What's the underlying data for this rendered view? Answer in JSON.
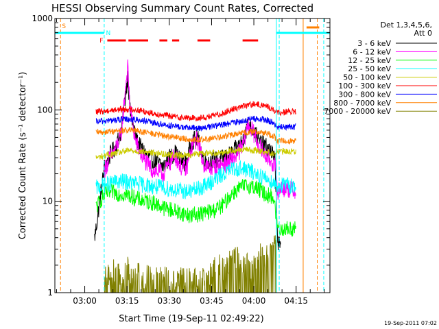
{
  "chart_data": {
    "type": "line",
    "title": "HESSI Observing Summary Count Rates, Corrected",
    "xlabel": "Start Time (19-Sep-11 02:49:22)",
    "ylabel": "Corrected Count Rate (s⁻¹ detector⁻¹)",
    "yscale": "log",
    "ylim": [
      1,
      1000
    ],
    "x_unit": "minutes of day (UT)",
    "xlim": [
      169.4,
      267
    ],
    "x_tick_labels": [
      "03:00",
      "03:15",
      "03:30",
      "03:45",
      "04:00",
      "04:15"
    ],
    "x_tick_values": [
      180,
      195,
      210,
      225,
      240,
      255
    ],
    "y_tick_labels": [
      "1",
      "10",
      "100",
      "1000"
    ],
    "y_tick_values": [
      1,
      10,
      100,
      1000
    ],
    "legend": {
      "placement": "right",
      "header": [
        "Det 1,3,4,5,6,",
        "Att 0"
      ]
    },
    "series": [
      {
        "name": "3 - 6 keV",
        "color": "#000000",
        "x": [
          183.5,
          184.0,
          187.0,
          189.0,
          191.0,
          193.0,
          194.6,
          195.3,
          196.0,
          198.0,
          200.0,
          202.0,
          204.0,
          206.0,
          208.0,
          210.0,
          212.0,
          214.0,
          216.0,
          218.0,
          220.0,
          222.0,
          224.0,
          226.0,
          228.0,
          230.0,
          232.0,
          234.0,
          236.0,
          238.0,
          240.0,
          242.0,
          244.0,
          246.0,
          247.5,
          248.5,
          249.5
        ],
        "y": [
          4.0,
          5.0,
          24,
          32,
          40,
          60,
          160,
          240,
          100,
          50,
          38,
          32,
          28,
          26,
          24,
          30,
          34,
          28,
          26,
          45,
          50,
          30,
          27,
          28,
          29,
          30,
          33,
          38,
          46,
          70,
          60,
          45,
          40,
          36,
          28,
          3.6,
          3.0
        ]
      },
      {
        "name": "6 - 12 keV",
        "color": "#ff00ff",
        "x": [
          187.0,
          189.0,
          191.0,
          193.0,
          194.6,
          195.3,
          196.0,
          198.0,
          200.0,
          202.0,
          204.0,
          206.0,
          208.0,
          210.0,
          212.0,
          214.0,
          216.0,
          218.0,
          220.0,
          222.0,
          224.0,
          226.0,
          228.0,
          230.0,
          232.0,
          234.0,
          236.0,
          238.0,
          240.0,
          242.0,
          244.0,
          246.0,
          247.5,
          248.5,
          250.0,
          255.0
        ],
        "y": [
          22,
          30,
          38,
          55,
          200,
          290,
          110,
          45,
          32,
          26,
          22,
          21,
          20,
          26,
          32,
          24,
          22,
          40,
          48,
          26,
          23,
          24,
          25,
          26,
          28,
          32,
          40,
          70,
          55,
          40,
          32,
          28,
          24,
          13,
          14,
          13
        ]
      },
      {
        "name": "12 - 25 keV",
        "color": "#00ff00",
        "x": [
          184.0,
          187.0,
          190.0,
          193.0,
          196.0,
          199.0,
          202.0,
          205.0,
          208.0,
          211.0,
          214.0,
          217.0,
          220.0,
          223.0,
          226.0,
          229.0,
          232.0,
          235.0,
          238.0,
          241.0,
          244.0,
          247.0,
          248.5,
          250.0,
          255.0
        ],
        "y": [
          8.5,
          12,
          12.5,
          12,
          11.5,
          10.5,
          10,
          9.5,
          8.5,
          8.0,
          7.5,
          7.0,
          7.2,
          7.5,
          8,
          9,
          12,
          14,
          15,
          14,
          12,
          11,
          5.0,
          5.0,
          5.0
        ]
      },
      {
        "name": "25 - 50 keV",
        "color": "#00ffff",
        "x": [
          184.0,
          187.0,
          190.0,
          193.0,
          196.0,
          199.0,
          202.0,
          205.0,
          208.0,
          211.0,
          214.0,
          217.0,
          220.0,
          223.0,
          226.0,
          229.0,
          232.0,
          235.0,
          238.0,
          241.0,
          244.0,
          247.0,
          248.5,
          250.0,
          255.0
        ],
        "y": [
          14,
          15,
          16,
          16.5,
          16,
          15.5,
          15,
          14.5,
          14,
          13.5,
          13,
          12.8,
          13.5,
          15,
          17,
          20,
          22,
          23,
          22,
          20,
          18,
          16,
          15,
          15,
          15
        ]
      },
      {
        "name": "50 - 100 keV",
        "color": "#cccc00",
        "x": [
          184.0,
          188.0,
          192.0,
          196.0,
          200.0,
          204.0,
          208.0,
          212.0,
          216.0,
          220.0,
          224.0,
          228.0,
          232.0,
          236.0,
          240.0,
          244.0,
          247.0,
          248.5,
          250.0,
          255.0
        ],
        "y": [
          30,
          32,
          34,
          36,
          35,
          34,
          33,
          32,
          32,
          33,
          34,
          34,
          36,
          37,
          36,
          35,
          33,
          35,
          35,
          35
        ]
      },
      {
        "name": "100 - 300 keV",
        "color": "#ff0000",
        "x": [
          184.0,
          188.0,
          192.0,
          196.0,
          200.0,
          204.0,
          208.0,
          212.0,
          216.0,
          220.0,
          224.0,
          228.0,
          232.0,
          236.0,
          240.0,
          244.0,
          247.0,
          248.5,
          250.0,
          255.0
        ],
        "y": [
          95,
          98,
          101,
          102,
          98,
          92,
          88,
          84,
          82,
          81,
          84,
          90,
          100,
          110,
          115,
          112,
          100,
          92,
          95,
          95
        ]
      },
      {
        "name": "300 - 800 keV",
        "color": "#0000ff",
        "x": [
          184.0,
          188.0,
          192.0,
          196.0,
          200.0,
          204.0,
          208.0,
          212.0,
          216.0,
          220.0,
          224.0,
          228.0,
          232.0,
          236.0,
          240.0,
          244.0,
          247.0,
          248.5,
          250.0,
          255.0
        ],
        "y": [
          74,
          76,
          78,
          79,
          77,
          72,
          69,
          66,
          64,
          63,
          65,
          68,
          72,
          76,
          80,
          78,
          72,
          64,
          65,
          65
        ]
      },
      {
        "name": "800 - 7000 keV",
        "color": "#ff8000",
        "x": [
          184.0,
          188.0,
          192.0,
          196.0,
          200.0,
          204.0,
          208.0,
          212.0,
          216.0,
          220.0,
          224.0,
          228.0,
          232.0,
          236.0,
          240.0,
          244.0,
          247.0,
          248.5,
          250.0,
          255.0
        ],
        "y": [
          56,
          58,
          59,
          60,
          58,
          55,
          52,
          50,
          48,
          47,
          48,
          50,
          53,
          56,
          58,
          56,
          52,
          45,
          46,
          46
        ]
      },
      {
        "name": "7000 - 20000 keV",
        "color": "#808000",
        "x": [
          187.0,
          189.0,
          191.0,
          193.0,
          195.0,
          197.0,
          199.0,
          201.0,
          203.0,
          205.0,
          224.0,
          227.0,
          230.0,
          233.0,
          236.0,
          239.0,
          242.0,
          245.0,
          248.0
        ],
        "y": [
          2.0,
          1.5,
          2.0,
          1.4,
          2.0,
          1.6,
          1.8,
          1.3,
          2.0,
          1.5,
          1.5,
          2.2,
          1.8,
          2.8,
          2.2,
          2.0,
          3.0,
          2.5,
          4.0
        ]
      }
    ],
    "night_markers": [
      {
        "label": "S",
        "x": 171.4
      },
      {
        "label": "N",
        "x": 186.9
      },
      {
        "label": "F",
        "x": 186.9
      }
    ],
    "intervals": [
      {
        "name": "night",
        "color": "#00ffff",
        "ranges": [
          [
            169.4,
            186.9
          ],
          [
            248.0,
            267.0
          ]
        ]
      },
      {
        "name": "flare",
        "color": "#ff0000",
        "ranges": [
          [
            188.0,
            194.6
          ],
          [
            195.5,
            202.5
          ],
          [
            206.5,
            209.3
          ],
          [
            211.0,
            213.5
          ],
          [
            220.0,
            224.5
          ],
          [
            236.0,
            241.5
          ]
        ]
      },
      {
        "name": "saa",
        "color": "#ff8000",
        "ranges": [
          [
            258.7,
            263.2
          ]
        ]
      }
    ],
    "vertical_lines": [
      {
        "x": 171.4,
        "color": "#ff8000",
        "style": "dashed"
      },
      {
        "x": 186.9,
        "color": "#00ffff",
        "style": "dashed"
      },
      {
        "x": 248.0,
        "color": "#00ffff",
        "style": "solid"
      },
      {
        "x": 249.0,
        "color": "#00ffff",
        "style": "dashed"
      },
      {
        "x": 257.5,
        "color": "#ff8000",
        "style": "solid"
      },
      {
        "x": 262.5,
        "color": "#ff8000",
        "style": "dashed"
      },
      {
        "x": 264.8,
        "color": "#00ffff",
        "style": "dashed"
      }
    ]
  },
  "footer": {
    "timestamp": "19-Sep-2011 07:02"
  }
}
